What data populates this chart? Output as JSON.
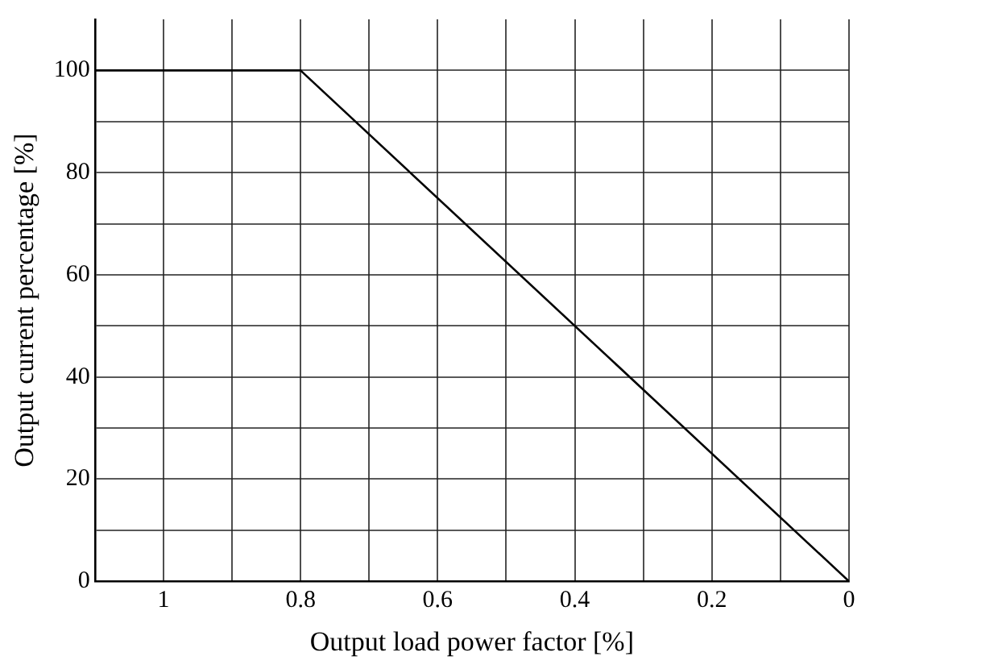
{
  "chart_data": {
    "type": "line",
    "xlabel": "Output load power factor [%]",
    "ylabel": "Output current percentage [%]",
    "x": [
      1.1,
      0.8,
      0
    ],
    "series": [
      {
        "color": "#000000",
        "values": [
          100,
          100,
          0
        ]
      }
    ],
    "xlim": [
      1.1,
      0
    ],
    "xticks": [
      {
        "value": 1.1,
        "label": null
      },
      1,
      {
        "value": 0.9,
        "label": null
      },
      0.8,
      {
        "value": 0.7,
        "label": null
      },
      0.6,
      {
        "value": 0.5,
        "label": null
      },
      0.4,
      {
        "value": 0.3,
        "label": null
      },
      0.2,
      {
        "value": 0.1,
        "label": null
      },
      0
    ],
    "ylim": [
      0,
      110
    ],
    "yticks": [
      0,
      {
        "value": 10,
        "label": null
      },
      20,
      {
        "value": 30,
        "label": null
      },
      40,
      {
        "value": 50,
        "label": null
      },
      60,
      {
        "value": 70,
        "label": null
      },
      80,
      {
        "value": 90,
        "label": null
      },
      100
    ],
    "grid": true,
    "legend": false,
    "marker": "none",
    "line_style": "solid"
  }
}
